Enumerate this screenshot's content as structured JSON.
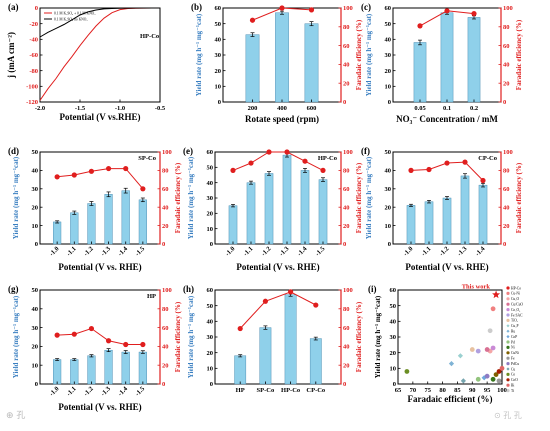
{
  "watermark": {
    "left": "⊕ 孔  ",
    "right": "⊙ 孔 孔"
  },
  "colors": {
    "bar": "#8fd0ea",
    "bar_edge": "#3a7fa8",
    "red": "#e01e1e",
    "black": "#000000",
    "grid_axis": "#000000"
  },
  "chart_data": [
    {
      "panel": "(a)",
      "type": "line",
      "xlabel": "Potential (V vs.RHE)",
      "ylabel": "j (mA cm⁻²)",
      "xlim": [
        -2.0,
        -0.5
      ],
      "ylim": [
        -120,
        0
      ],
      "xticks": [
        -2.0,
        -1.5,
        -1.0,
        -0.5
      ],
      "xtick_labels": [
        "-2.0",
        "-1.5",
        "-1.0",
        "-0.5"
      ],
      "yticks": [
        -120,
        -100,
        -80,
        -60,
        -40,
        -20,
        0
      ],
      "tag": "HP-Co",
      "legend_position": "top-left",
      "series": [
        {
          "name": "0.1 M K₂SO₄ + 0.1 M KNO₃",
          "color": "#e01e1e",
          "x": [
            -2.0,
            -1.9,
            -1.8,
            -1.7,
            -1.6,
            -1.5,
            -1.4,
            -1.3,
            -1.2,
            -1.1,
            -1.0,
            -0.9,
            -0.8,
            -0.7,
            -0.6,
            -0.5
          ],
          "y": [
            -118,
            -103,
            -90,
            -75,
            -62,
            -48,
            -35,
            -23,
            -13,
            -6,
            -2,
            -0.6,
            -0.2,
            -0.1,
            0,
            0
          ]
        },
        {
          "name": "0.1 M K₂SO₄ no KNO₃",
          "color": "#000000",
          "x": [
            -2.0,
            -1.9,
            -1.8,
            -1.7,
            -1.6,
            -1.5,
            -1.4,
            -1.3,
            -1.2,
            -1.1,
            -1.0,
            -0.9,
            -0.8,
            -0.7,
            -0.6,
            -0.5
          ],
          "y": [
            -37,
            -31,
            -26,
            -21,
            -15,
            -9,
            -5,
            -2.5,
            -1.2,
            -0.6,
            -0.3,
            -0.1,
            0,
            0,
            0,
            0
          ]
        }
      ]
    },
    {
      "panel": "(b)",
      "type": "bar",
      "xlabel": "Rotate speed (rpm)",
      "ylabel": "Yield rate (mg h⁻¹ mg⁻¹cat)",
      "y2label": "Faradaic efficiency (%)",
      "categories": [
        "200",
        "400",
        "600"
      ],
      "values": [
        43,
        57,
        50
      ],
      "errors": [
        1.2,
        1.0,
        1.3
      ],
      "fe": [
        87,
        100,
        98
      ],
      "ylim": [
        0,
        60
      ],
      "yticks": [
        0,
        10,
        20,
        30,
        40,
        50,
        60
      ],
      "y2lim": [
        0,
        100
      ],
      "y2ticks": [
        0,
        20,
        40,
        60,
        80,
        100
      ]
    },
    {
      "panel": "(c)",
      "type": "bar",
      "xlabel": "NO₃⁻ Concentration / mM",
      "ylabel": "Yield rate (mg h⁻¹ mg⁻¹cat)",
      "y2label": "Faradaic efficiency (%)",
      "categories": [
        "0.05",
        "0.1",
        "0.2"
      ],
      "values": [
        38,
        57,
        54
      ],
      "errors": [
        1.5,
        1.0,
        1.0
      ],
      "fe": [
        81,
        97,
        94
      ],
      "ylim": [
        0,
        60
      ],
      "yticks": [
        0,
        10,
        20,
        30,
        40,
        50,
        60
      ],
      "y2lim": [
        0,
        100
      ],
      "y2ticks": [
        0,
        20,
        40,
        60,
        80,
        100
      ]
    },
    {
      "panel": "(d)",
      "type": "bar",
      "tag": "SP-Co",
      "xlabel": "Potential (V vs. RHE)",
      "ylabel": "Yield rate (mg h⁻¹ mg⁻¹cat)",
      "y2label": "Faradaic efficiency (%)",
      "categories": [
        "-1.0",
        "-1.1",
        "-1.2",
        "-1.3",
        "-1.4",
        "-1.5"
      ],
      "values": [
        12,
        17,
        22,
        27,
        29,
        24
      ],
      "errors": [
        0.6,
        0.9,
        1.1,
        1.3,
        1.3,
        1.0
      ],
      "fe": [
        73,
        75,
        79,
        82,
        82,
        60
      ],
      "ylim": [
        0,
        50
      ],
      "yticks": [
        0,
        10,
        20,
        30,
        40,
        50
      ],
      "y2lim": [
        0,
        100
      ],
      "y2ticks": [
        0,
        20,
        40,
        60,
        80,
        100
      ]
    },
    {
      "panel": "(e)",
      "type": "bar",
      "tag": "HP-Co",
      "xlabel": "Potential (V vs. RHE)",
      "ylabel": "Yield rate (mg h⁻¹ mg⁻¹cat)",
      "y2label": "Faradaic efficiency (%)",
      "categories": [
        "-1.0",
        "-1.1",
        "-1.2",
        "-1.3",
        "-1.4",
        "-1.5"
      ],
      "values": [
        25,
        40,
        46,
        58,
        48,
        42
      ],
      "errors": [
        0.8,
        1.0,
        1.2,
        1.3,
        1.3,
        1.2
      ],
      "fe": [
        80,
        88,
        100,
        100,
        90,
        80
      ],
      "ylim": [
        0,
        60
      ],
      "yticks": [
        0,
        10,
        20,
        30,
        40,
        50,
        60
      ],
      "y2lim": [
        0,
        100
      ],
      "y2ticks": [
        0,
        20,
        40,
        60,
        80,
        100
      ]
    },
    {
      "panel": "(f)",
      "type": "bar",
      "tag": "CP-Co",
      "xlabel": "Potential (V vs. RHE)",
      "ylabel": "Yield rate (mg h⁻¹ mg⁻¹cat)",
      "y2label": "Faradaic efficiency (%)",
      "categories": [
        "-1.0",
        "-1.1",
        "-1.2",
        "-1.3",
        "-1.4"
      ],
      "values": [
        21,
        23,
        25,
        37,
        32
      ],
      "errors": [
        0.6,
        0.7,
        0.8,
        1.2,
        1.0
      ],
      "fe": [
        80,
        81,
        88,
        89,
        69
      ],
      "ylim": [
        0,
        50
      ],
      "yticks": [
        0,
        10,
        20,
        30,
        40,
        50
      ],
      "y2lim": [
        0,
        100
      ],
      "y2ticks": [
        0,
        20,
        40,
        60,
        80,
        100
      ]
    },
    {
      "panel": "(g)",
      "type": "bar",
      "tag": "HP",
      "xlabel": "Potential (V vs. RHE)",
      "ylabel": "Yield rate (mg h⁻¹ mg⁻¹cat)",
      "y2label": "Faradaic efficiency (%)",
      "categories": [
        "-1.0",
        "-1.1",
        "-1.2",
        "-1.3",
        "-1.4",
        "-1.5"
      ],
      "values": [
        13,
        13,
        15,
        18,
        17,
        17
      ],
      "errors": [
        0.5,
        0.5,
        0.6,
        0.8,
        0.8,
        0.7
      ],
      "fe": [
        52,
        53,
        59,
        46,
        42,
        42
      ],
      "ylim": [
        0,
        50
      ],
      "yticks": [
        0,
        10,
        20,
        30,
        40,
        50
      ],
      "y2lim": [
        0,
        100
      ],
      "y2ticks": [
        0,
        20,
        40,
        60,
        80,
        100
      ]
    },
    {
      "panel": "(h)",
      "type": "bar",
      "xlabel": "",
      "ylabel": "Yield rate (mg h⁻¹ mg⁻¹cat)",
      "y2label": "Faradaic efficiency (%)",
      "categories": [
        "HP",
        "SP-Co",
        "HP-Co",
        "CP-Co"
      ],
      "values": [
        18,
        36,
        57,
        29
      ],
      "errors": [
        0.7,
        1.1,
        1.0,
        0.9
      ],
      "fe": [
        59,
        88,
        98,
        84
      ],
      "ylim": [
        0,
        60
      ],
      "yticks": [
        0,
        10,
        20,
        30,
        40,
        50,
        60
      ],
      "y2lim": [
        0,
        100
      ],
      "y2ticks": [
        0,
        20,
        40,
        60,
        80,
        100
      ]
    },
    {
      "panel": "(i)",
      "type": "scatter",
      "xlabel": "Faradaic efficient (%)",
      "ylabel": "Yield rate (mg h⁻¹ mg⁻¹cat)",
      "xlim": [
        65,
        100
      ],
      "xticks": [
        65,
        70,
        75,
        80,
        85,
        90,
        95,
        100
      ],
      "ylim": [
        0,
        60
      ],
      "yticks": [
        0,
        10,
        20,
        30,
        40,
        50,
        60
      ],
      "annotation": "This work",
      "points": [
        {
          "name": "HP-Co",
          "x": 98,
          "y": 57,
          "color": "#e01e1e",
          "shape": "star"
        },
        {
          "name": "Cu-Ni",
          "x": 97,
          "y": 48,
          "color": "#f08080",
          "shape": "circle"
        },
        {
          "name": "Cu₂O",
          "x": 96,
          "y": 21,
          "color": "#f4a6a6",
          "shape": "circle"
        },
        {
          "name": "Cu/CuO",
          "x": 95,
          "y": 22,
          "color": "#d87093",
          "shape": "circle"
        },
        {
          "name": "Co₃O₄",
          "x": 97,
          "y": 23,
          "color": "#c98ad6",
          "shape": "circle"
        },
        {
          "name": "Fe SAC",
          "x": 92,
          "y": 21,
          "color": "#b0a0e0",
          "shape": "circle"
        },
        {
          "name": "TiO₂",
          "x": 90,
          "y": 22,
          "color": "#e7c1a0",
          "shape": "circle"
        },
        {
          "name": "Cu₃P",
          "x": 86,
          "y": 18,
          "color": "#9ad0d0",
          "shape": "diamond"
        },
        {
          "name": "Ru",
          "x": 83,
          "y": 13,
          "color": "#7fb3d5",
          "shape": "diamond"
        },
        {
          "name": "CoP",
          "x": 94,
          "y": 4,
          "color": "#6fa8dc",
          "shape": "diamond"
        },
        {
          "name": "Pd",
          "x": 92,
          "y": 3,
          "color": "#93c47d",
          "shape": "circle"
        },
        {
          "name": "Ni",
          "x": 97,
          "y": 3,
          "color": "#38761d",
          "shape": "circle"
        },
        {
          "name": "CuNi",
          "x": 98,
          "y": 6,
          "color": "#7f6000",
          "shape": "circle"
        },
        {
          "name": "Fe",
          "x": 99,
          "y": 2,
          "color": "#999999",
          "shape": "circle"
        },
        {
          "name": "PdCu",
          "x": 95,
          "y": 5,
          "color": "#8e7cc3",
          "shape": "circle"
        },
        {
          "name": "Cu",
          "x": 87,
          "y": 2,
          "color": "#76a5af",
          "shape": "diamond"
        },
        {
          "name": "Co",
          "x": 68,
          "y": 8,
          "color": "#6b8e23",
          "shape": "circle"
        },
        {
          "name": "CoO",
          "x": 99,
          "y": 8,
          "color": "#a61c00",
          "shape": "circle"
        },
        {
          "name": "Bi",
          "x": 100,
          "y": 10,
          "color": "#e06666",
          "shape": "circle"
        },
        {
          "name": "Ti",
          "x": 96,
          "y": 34,
          "color": "#cccccc",
          "shape": "circle"
        }
      ]
    }
  ]
}
